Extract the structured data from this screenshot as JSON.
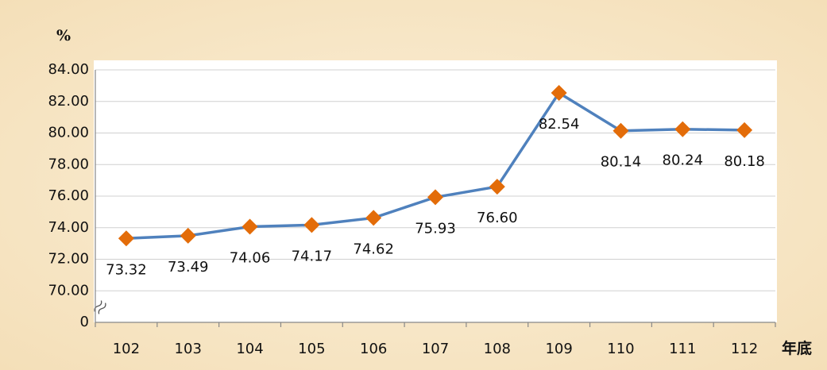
{
  "chart_data": {
    "type": "line",
    "y_label": "%",
    "x_label": "年底",
    "categories": [
      "102",
      "103",
      "104",
      "105",
      "106",
      "107",
      "108",
      "109",
      "110",
      "111",
      "112"
    ],
    "series": [
      {
        "name": null,
        "color": "#4f81bd",
        "marker_color": "#e36c09",
        "values": [
          73.32,
          73.49,
          74.06,
          74.17,
          74.62,
          75.93,
          76.6,
          82.54,
          80.14,
          80.24,
          80.18
        ],
        "value_labels": [
          "73.32",
          "73.49",
          "74.06",
          "74.17",
          "74.62",
          "75.93",
          "76.60",
          "82.54",
          "80.14",
          "80.24",
          "80.18"
        ]
      }
    ],
    "ylim": [
      0,
      84
    ],
    "axis_break": [
      0,
      70
    ],
    "yticks": [
      {
        "value": 0,
        "label": "0"
      },
      {
        "value": 70,
        "label": "70.00"
      },
      {
        "value": 72,
        "label": "72.00"
      },
      {
        "value": 74,
        "label": "74.00"
      },
      {
        "value": 76,
        "label": "76.00"
      },
      {
        "value": 78,
        "label": "78.00"
      },
      {
        "value": 80,
        "label": "80.00"
      },
      {
        "value": 82,
        "label": "82.00"
      },
      {
        "value": 84,
        "label": "84.00"
      }
    ],
    "grid": true
  }
}
